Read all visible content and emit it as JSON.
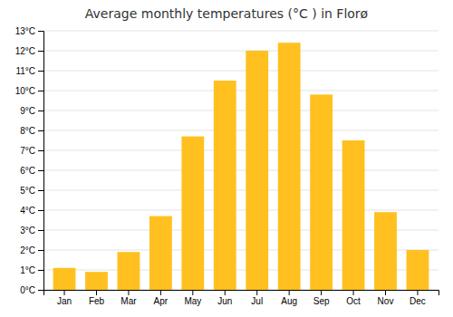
{
  "chart_data": {
    "type": "bar",
    "title": "Average monthly temperatures (°C ) in Florø",
    "categories": [
      "Jan",
      "Feb",
      "Mar",
      "Apr",
      "May",
      "Jun",
      "Jul",
      "Aug",
      "Sep",
      "Oct",
      "Nov",
      "Dec"
    ],
    "values": [
      1.1,
      0.9,
      1.9,
      3.7,
      7.7,
      10.5,
      12.0,
      12.4,
      9.8,
      7.5,
      3.9,
      2.0
    ],
    "color": "#FFC020",
    "ylim": [
      0,
      13
    ],
    "yticks": [
      {
        "value": 0,
        "label": "0°C"
      },
      {
        "value": 1,
        "label": "1°C"
      },
      {
        "value": 2,
        "label": "2°C"
      },
      {
        "value": 3,
        "label": "3°C"
      },
      {
        "value": 4,
        "label": "4°C"
      },
      {
        "value": 5,
        "label": "5°C"
      },
      {
        "value": 6,
        "label": "6°C"
      },
      {
        "value": 7,
        "label": "7°C"
      },
      {
        "value": 8,
        "label": "8°C"
      },
      {
        "value": 9,
        "label": "9°C"
      },
      {
        "value": 10,
        "label": "10°C"
      },
      {
        "value": 11,
        "label": "11°C"
      },
      {
        "value": 12,
        "label": "12°C"
      },
      {
        "value": 13,
        "label": "13°C"
      }
    ],
    "grid": true
  }
}
